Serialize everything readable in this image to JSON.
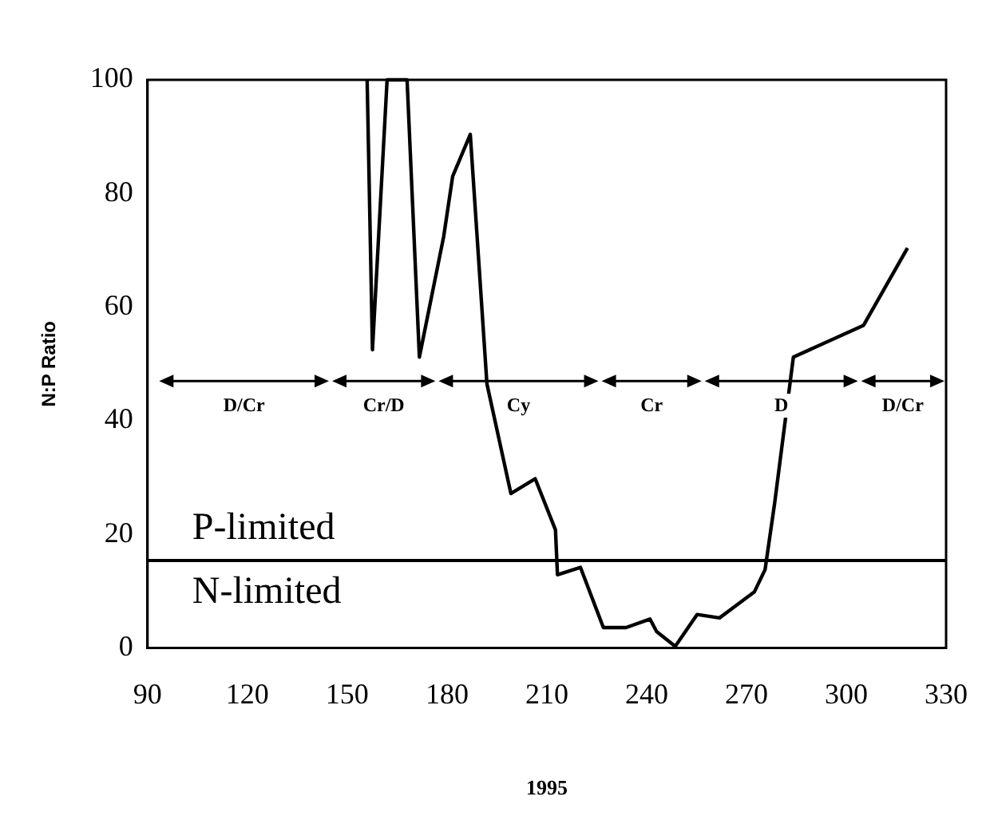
{
  "chart_data": {
    "type": "line",
    "xlabel": "1995",
    "ylabel": "N:P Ratio",
    "x": [
      156,
      157.6,
      162,
      168,
      171.7,
      179,
      181.7,
      187,
      192,
      199.2,
      206.5,
      212.6,
      213.2,
      220.1,
      227,
      233.8,
      241,
      243,
      248.6,
      255.2,
      261.9,
      272.4,
      275.6,
      278.5,
      284.1,
      305.2,
      318.4
    ],
    "series": [
      {
        "color": "#000000",
        "values": [
          100,
          52.5,
          100,
          100,
          51.2,
          72.4,
          83,
          90.4,
          46.5,
          27.2,
          29.8,
          20.8,
          12.9,
          14.2,
          3.6,
          3.6,
          5.1,
          2.9,
          0.3,
          5.9,
          5.3,
          9.9,
          13.8,
          25.6,
          51.2,
          56.8,
          70.4
        ]
      }
    ],
    "xlim": [
      90,
      330
    ],
    "xticks": [
      90,
      120,
      150,
      180,
      210,
      240,
      270,
      300,
      330
    ],
    "ylim": [
      0,
      100
    ],
    "yticks": [
      0,
      20,
      40,
      60,
      80,
      100
    ],
    "grid": false,
    "legend": false,
    "marker": "none",
    "line_style": "solid",
    "ref_lines": [
      {
        "axis": "y",
        "value": 15.4,
        "color": "#000000"
      }
    ],
    "annotations": [
      "D/Cr",
      "Cr/D",
      "Cy",
      "Cr",
      "D",
      "D/Cr",
      "P-limited",
      "N-limited"
    ]
  }
}
